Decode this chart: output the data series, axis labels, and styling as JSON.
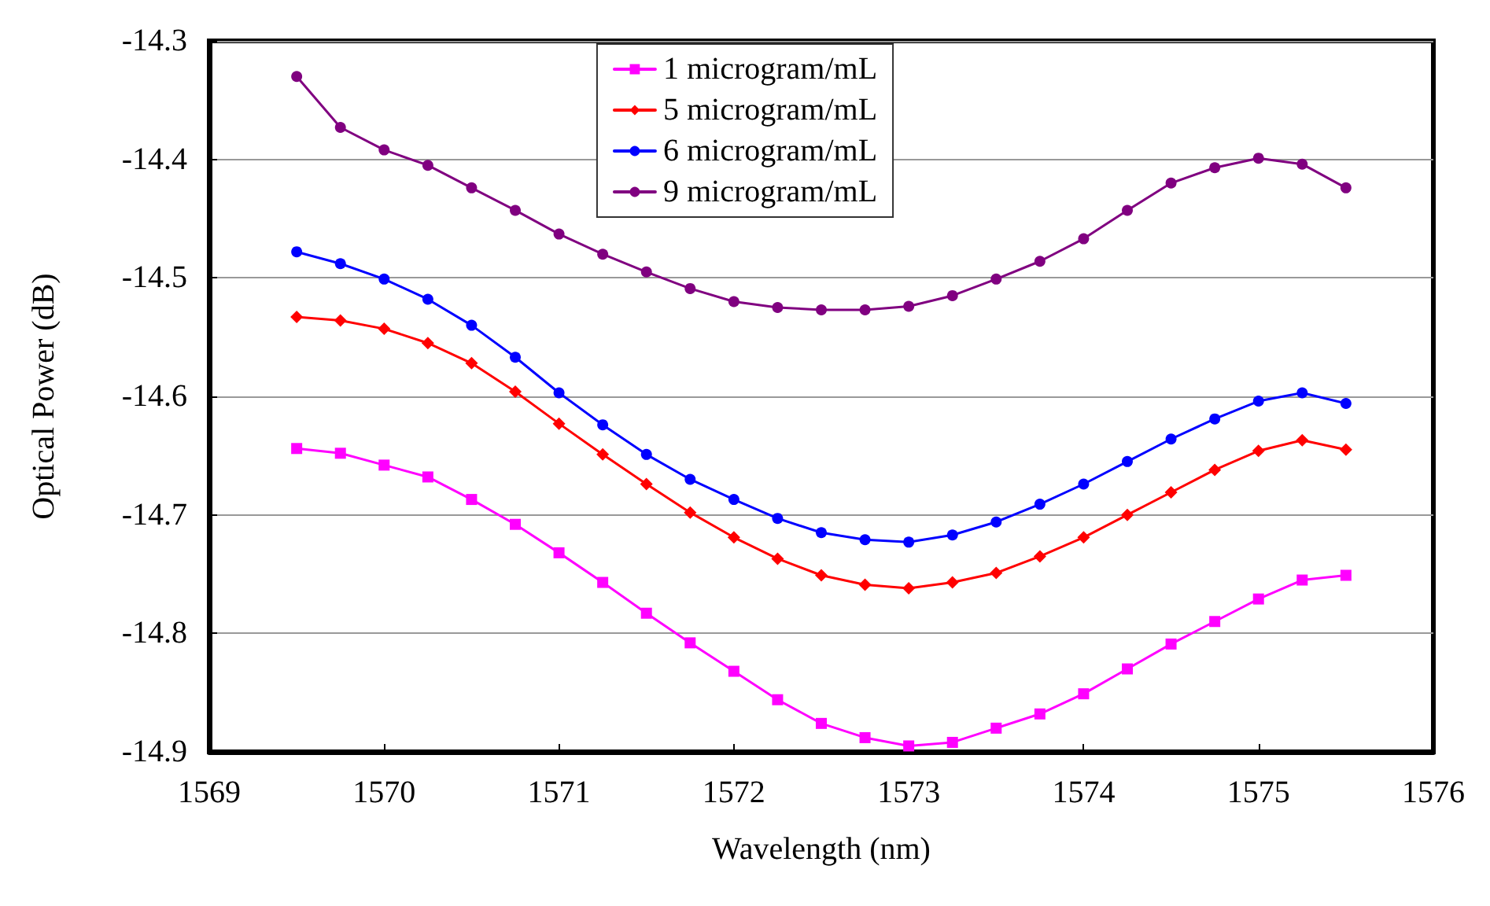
{
  "chart_data": {
    "type": "line",
    "xlabel": "Wavelength (nm)",
    "ylabel": "Optical Power (dB)",
    "xlim": [
      1569,
      1576
    ],
    "xticks": [
      1569,
      1570,
      1571,
      1572,
      1573,
      1574,
      1575,
      1576
    ],
    "ylim": [
      -14.9,
      -14.3
    ],
    "yticks": [
      -14.9,
      -14.8,
      -14.7,
      -14.6,
      -14.5,
      -14.4,
      -14.3
    ],
    "grid": "y",
    "legend": "top",
    "line_style": "solid",
    "x": [
      1569.5,
      1569.75,
      1570,
      1570.25,
      1570.5,
      1570.75,
      1571,
      1571.25,
      1571.5,
      1571.75,
      1572,
      1572.25,
      1572.5,
      1572.75,
      1573,
      1573.25,
      1573.5,
      1573.75,
      1574,
      1574.25,
      1574.5,
      1574.75,
      1575,
      1575.25,
      1575.5
    ],
    "series": [
      {
        "name": "1 microgram/mL",
        "color": "#ff00ff",
        "marker": "square",
        "values": [
          -14.644,
          -14.648,
          -14.658,
          -14.668,
          -14.687,
          -14.708,
          -14.732,
          -14.757,
          -14.783,
          -14.808,
          -14.832,
          -14.856,
          -14.876,
          -14.888,
          -14.895,
          -14.892,
          -14.88,
          -14.868,
          -14.851,
          -14.83,
          -14.809,
          -14.79,
          -14.771,
          -14.755,
          -14.751
        ]
      },
      {
        "name": "5 microgram/mL",
        "color": "#ff0000",
        "marker": "diamond",
        "values": [
          -14.533,
          -14.536,
          -14.543,
          -14.555,
          -14.572,
          -14.596,
          -14.623,
          -14.649,
          -14.674,
          -14.698,
          -14.719,
          -14.737,
          -14.751,
          -14.759,
          -14.762,
          -14.757,
          -14.749,
          -14.735,
          -14.719,
          -14.7,
          -14.681,
          -14.662,
          -14.646,
          -14.637,
          -14.645
        ]
      },
      {
        "name": "6 microgram/mL",
        "color": "#0000ff",
        "marker": "circle",
        "values": [
          -14.478,
          -14.488,
          -14.501,
          -14.518,
          -14.54,
          -14.567,
          -14.597,
          -14.624,
          -14.649,
          -14.67,
          -14.687,
          -14.703,
          -14.715,
          -14.721,
          -14.723,
          -14.717,
          -14.706,
          -14.691,
          -14.674,
          -14.655,
          -14.636,
          -14.619,
          -14.604,
          -14.597,
          -14.606
        ]
      },
      {
        "name": "9 microgram/mL",
        "color": "#800080",
        "marker": "circle",
        "values": [
          -14.33,
          -14.373,
          -14.392,
          -14.405,
          -14.424,
          -14.443,
          -14.463,
          -14.48,
          -14.495,
          -14.509,
          -14.52,
          -14.525,
          -14.527,
          -14.527,
          -14.524,
          -14.515,
          -14.501,
          -14.486,
          -14.467,
          -14.443,
          -14.42,
          -14.407,
          -14.399,
          -14.404,
          -14.424
        ]
      }
    ]
  }
}
